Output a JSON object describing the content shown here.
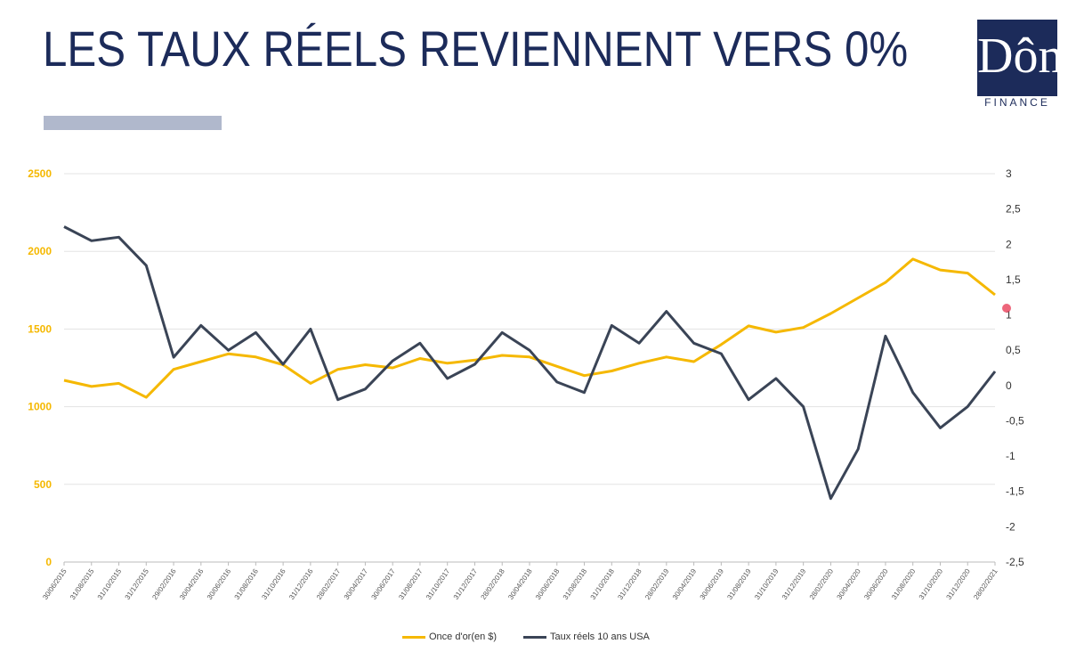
{
  "slide": {
    "title": "LES TAUX RÉELS REVIENNENT VERS 0%",
    "logo_mark": "Dôm",
    "logo_text": "FINANCE"
  },
  "colors": {
    "gold": "#f5b800",
    "real_rate": "#3a4456",
    "title": "#1c2b5a",
    "bar": "#b0b8cc",
    "marker": "#e8405a"
  },
  "chart_data": {
    "type": "line",
    "title": "",
    "x_tick_labels": [
      "30/06/2015",
      "31/08/2015",
      "31/10/2015",
      "31/12/2015",
      "29/02/2016",
      "30/04/2016",
      "30/06/2016",
      "31/08/2016",
      "31/10/2016",
      "31/12/2016",
      "28/02/2017",
      "30/04/2017",
      "30/06/2017",
      "31/08/2017",
      "31/10/2017",
      "31/12/2017",
      "28/02/2018",
      "30/04/2018",
      "30/06/2018",
      "31/08/2018",
      "31/10/2018",
      "31/12/2018",
      "28/02/2019",
      "30/04/2019",
      "30/06/2019",
      "31/08/2019",
      "31/10/2019",
      "31/12/2019",
      "28/02/2020",
      "30/04/2020",
      "30/06/2020",
      "31/08/2020",
      "31/10/2020",
      "31/12/2020",
      "28/02/2021"
    ],
    "y_left": {
      "ylim": [
        0,
        2500
      ],
      "ticks": [
        "0",
        "500",
        "1000",
        "1500",
        "2000",
        "2500"
      ]
    },
    "y_right": {
      "ylim": [
        -2.5,
        3
      ],
      "ticks": [
        "-2,5",
        "-2",
        "-1,5",
        "-1",
        "-0,5",
        "0",
        "0,5",
        "1",
        "1,5",
        "2",
        "2,5",
        "3"
      ]
    },
    "legend_position": "bottom",
    "series": [
      {
        "name": "Once d'or(en $)",
        "axis": "left",
        "x_index": [
          0,
          1,
          2,
          3,
          4,
          5,
          6,
          7,
          8,
          9,
          10,
          11,
          12,
          13,
          14,
          15,
          16,
          17,
          18,
          19,
          20,
          21,
          22,
          23,
          24,
          25,
          26,
          27,
          28,
          29,
          30,
          31,
          32,
          33,
          34
        ],
        "values": [
          1170,
          1130,
          1150,
          1060,
          1240,
          1290,
          1340,
          1320,
          1270,
          1150,
          1240,
          1270,
          1250,
          1310,
          1280,
          1300,
          1330,
          1320,
          1260,
          1200,
          1230,
          1280,
          1320,
          1290,
          1400,
          1520,
          1480,
          1510,
          1600,
          1700,
          1800,
          1950,
          1880,
          1860,
          1720
        ]
      },
      {
        "name": "Taux réels 10 ans USA",
        "axis": "right",
        "x_index": [
          0,
          1,
          2,
          3,
          4,
          5,
          6,
          7,
          8,
          9,
          10,
          11,
          12,
          13,
          14,
          15,
          16,
          17,
          18,
          19,
          20,
          21,
          22,
          23,
          24,
          25,
          26,
          27,
          28,
          29,
          30,
          31,
          32,
          33,
          34
        ],
        "values": [
          2.25,
          2.05,
          2.1,
          1.7,
          0.4,
          0.85,
          0.5,
          0.75,
          0.3,
          0.8,
          -0.2,
          -0.05,
          0.35,
          0.6,
          0.1,
          0.3,
          0.75,
          0.5,
          0.05,
          -0.1,
          0.85,
          0.6,
          1.05,
          0.6,
          0.45,
          -0.2,
          0.1,
          -0.3,
          -1.6,
          -0.9,
          0.7,
          -0.1,
          -0.6,
          -0.3,
          0.2
        ]
      }
    ]
  }
}
